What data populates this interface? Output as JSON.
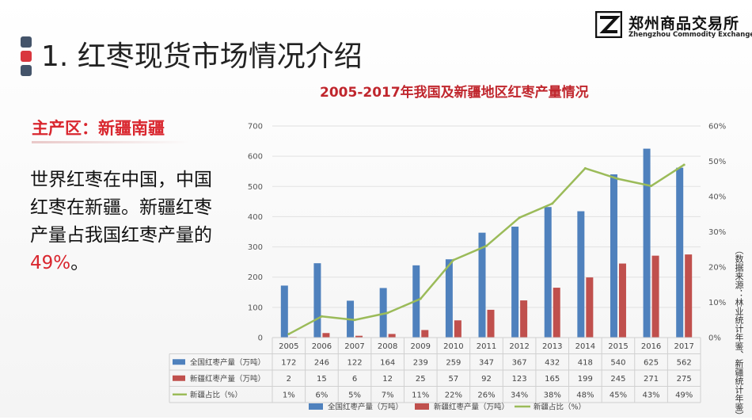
{
  "page": {
    "title": "1. 红枣现货市场情况介绍",
    "logo_name": "郑州商品交易所",
    "logo_en": "Zhengzhou Commodity Exchange",
    "region": "主产区：新疆南疆",
    "desc_text": "世界红枣在中国，中国红枣在新疆。新疆红枣产量占我国红枣产量的 ",
    "desc_highlight": "49%",
    "desc_end": "。",
    "source": "（数据来源：林业统计年鉴、新疆统计年鉴）"
  },
  "colors": {
    "accent_red": "#d9262e",
    "bar_national": "#4f81bd",
    "bar_xinjiang": "#c0504d",
    "line_share": "#9bbb59"
  },
  "chart_data": {
    "type": "bar",
    "title": "2005-2017年我国及新疆地区红枣产量情况",
    "categories": [
      "2005",
      "2006",
      "2007",
      "2008",
      "2009",
      "2010",
      "2011",
      "2012",
      "2013",
      "2014",
      "2015",
      "2016",
      "2017"
    ],
    "series": [
      {
        "name": "全国红枣产量（万吨）",
        "type": "bar",
        "axis": "left",
        "values": [
          172,
          246,
          122,
          164,
          239,
          259,
          347,
          367,
          432,
          418,
          540,
          625,
          562
        ]
      },
      {
        "name": "新疆红枣产量（万吨）",
        "type": "bar",
        "axis": "left",
        "values": [
          2,
          15,
          6,
          12,
          25,
          57,
          92,
          123,
          165,
          199,
          245,
          271,
          275
        ]
      },
      {
        "name": "新疆占比（%）",
        "type": "line",
        "axis": "right",
        "values": [
          1,
          6,
          5,
          7,
          11,
          22,
          26,
          34,
          38,
          48,
          45,
          43,
          49
        ]
      }
    ],
    "table_labels": [
      "1%",
      "6%",
      "5%",
      "7%",
      "11%",
      "22%",
      "26%",
      "34%",
      "38%",
      "48%",
      "45%",
      "43%",
      "49%"
    ],
    "legend": [
      "全国红枣产量（万吨）",
      "新疆红枣产量（万吨）",
      "新疆占比（%）"
    ],
    "legend_position": "bottom",
    "ylim": [
      0,
      700
    ],
    "yticks": [
      "0",
      "100",
      "200",
      "300",
      "400",
      "500",
      "600",
      "700"
    ],
    "y2lim": [
      0,
      60
    ],
    "y2ticks": [
      "0%",
      "10%",
      "20%",
      "30%",
      "40%",
      "50%",
      "60%"
    ],
    "grid": true,
    "data_table": true
  }
}
